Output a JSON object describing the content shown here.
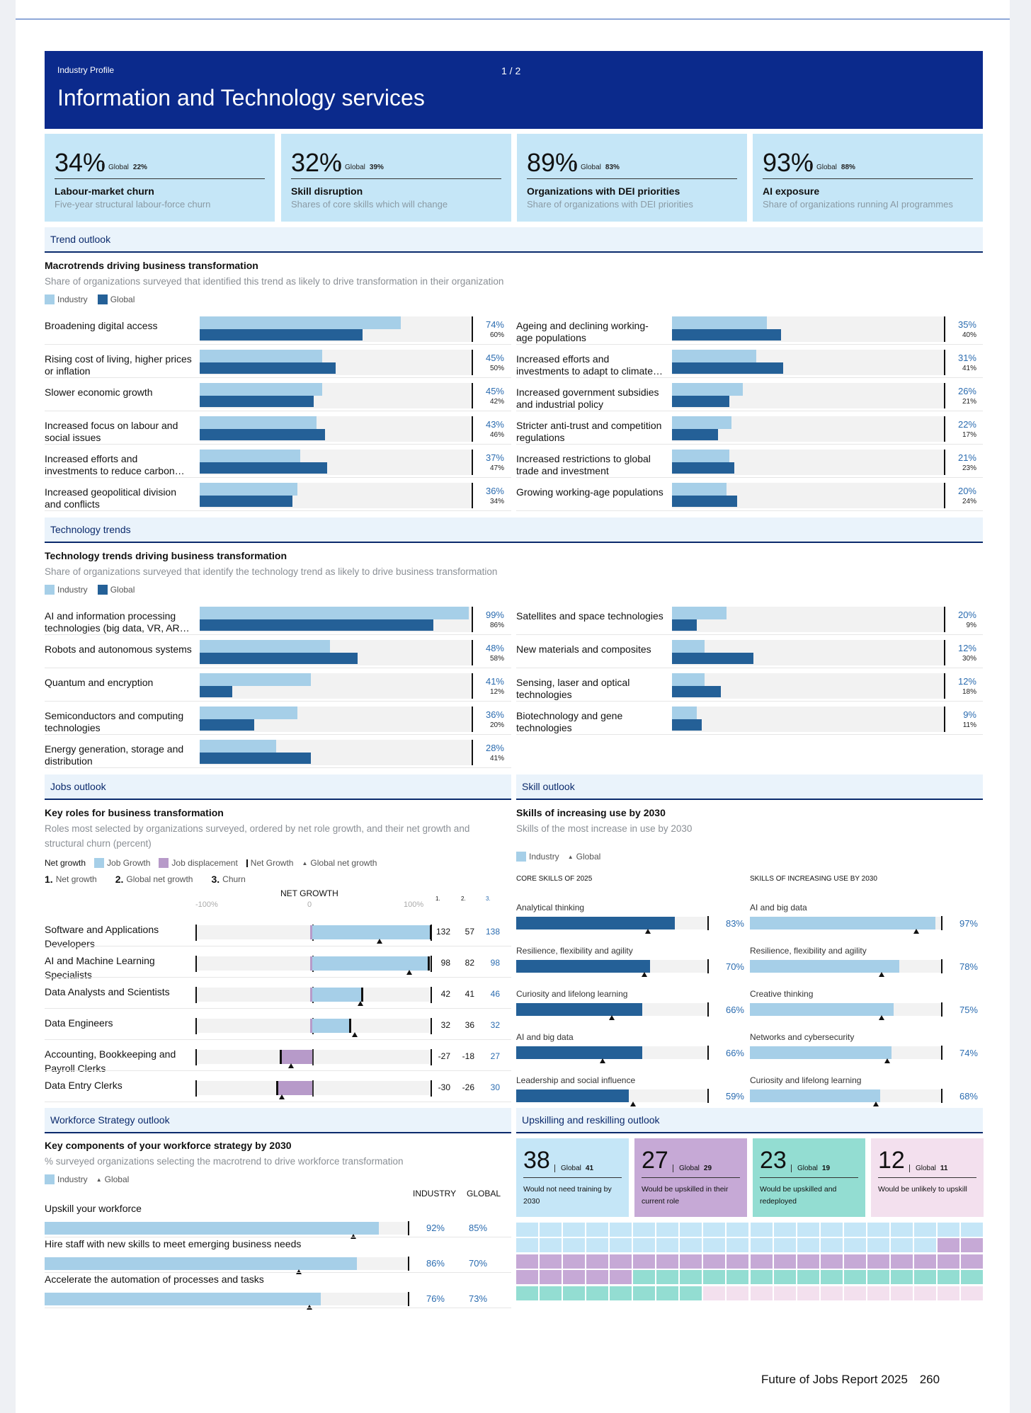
{
  "header": {
    "label": "Industry Profile",
    "page": "1  /  2",
    "title": "Information and Technology services"
  },
  "kpis": [
    {
      "value": "34%",
      "global_label": "Global",
      "global": "22%",
      "title": "Labour-market churn",
      "sub": "Five-year structural labour-force churn"
    },
    {
      "value": "32%",
      "global_label": "Global",
      "global": "39%",
      "title": "Skill disruption",
      "sub": "Shares of core skills which will change"
    },
    {
      "value": "89%",
      "global_label": "Global",
      "global": "83%",
      "title": "Organizations with DEI priorities",
      "sub": "Share of organizations with DEI priorities"
    },
    {
      "value": "93%",
      "global_label": "Global",
      "global": "88%",
      "title": "AI exposure",
      "sub": "Share of organizations running AI programmes"
    }
  ],
  "legend": {
    "industry": "Industry",
    "global": "Global"
  },
  "trend": {
    "section": "Trend outlook",
    "title": "Macrotrends driving business transformation",
    "sub": "Share of organizations surveyed that identified this trend as likely to drive transformation in their organization",
    "rows": [
      {
        "label": "Broadening digital access",
        "ind": 74,
        "glob": 60
      },
      {
        "label": "Rising cost of living, higher prices or inflation",
        "ind": 45,
        "glob": 50
      },
      {
        "label": "Slower economic growth",
        "ind": 45,
        "glob": 42
      },
      {
        "label": "Increased focus on labour and social issues",
        "ind": 43,
        "glob": 46
      },
      {
        "label": "Increased efforts and investments to reduce carbon…",
        "ind": 37,
        "glob": 47
      },
      {
        "label": "Increased geopolitical division and conflicts",
        "ind": 36,
        "glob": 34
      },
      {
        "label": "Ageing and declining working-age populations",
        "ind": 35,
        "glob": 40
      },
      {
        "label": "Increased efforts and investments to adapt to climate…",
        "ind": 31,
        "glob": 41
      },
      {
        "label": "Increased government subsidies and industrial policy",
        "ind": 26,
        "glob": 21
      },
      {
        "label": "Stricter anti-trust and competition regulations",
        "ind": 22,
        "glob": 17
      },
      {
        "label": "Increased restrictions to global trade and investment",
        "ind": 21,
        "glob": 23
      },
      {
        "label": "Growing working-age populations",
        "ind": 20,
        "glob": 24
      }
    ]
  },
  "tech": {
    "section": "Technology trends",
    "title": "Technology trends driving business transformation",
    "sub": "Share of organizations surveyed that identify the technology trend as likely to drive business transformation",
    "rows": [
      {
        "label": "AI and information processing technologies (big data, VR, AR…",
        "ind": 99,
        "glob": 86
      },
      {
        "label": "Robots and autonomous systems",
        "ind": 48,
        "glob": 58
      },
      {
        "label": "Quantum and encryption",
        "ind": 41,
        "glob": 12
      },
      {
        "label": "Semiconductors and computing technologies",
        "ind": 36,
        "glob": 20
      },
      {
        "label": "Energy generation, storage and distribution",
        "ind": 28,
        "glob": 41
      },
      {
        "label": "Satellites and space technologies",
        "ind": 20,
        "glob": 9
      },
      {
        "label": "New materials and composites",
        "ind": 12,
        "glob": 30
      },
      {
        "label": "Sensing, laser and optical technologies",
        "ind": 12,
        "glob": 18
      },
      {
        "label": "Biotechnology and gene technologies",
        "ind": 9,
        "glob": 11
      }
    ]
  },
  "jobs": {
    "section": "Jobs outlook",
    "title": "Key roles for business transformation",
    "sub": "Roles most selected by organizations surveyed, ordered by net role growth, and their net growth and structural churn (percent)",
    "legend": {
      "net": "Net growth",
      "growth": "Job Growth",
      "displacement": "Job displacement",
      "netg": "Net Growth",
      "global": "Global net growth"
    },
    "cols": {
      "c1": "Net growth",
      "c2": "Global net growth",
      "c3": "Churn",
      "n1": "1.",
      "n2": "2.",
      "n3": "3."
    },
    "axis": {
      "title": "NET GROWTH",
      "min": "-100%",
      "mid": "0",
      "max": "100%"
    },
    "rows": [
      {
        "label": "Software and Applications Developers",
        "net": 132,
        "glob": 57,
        "churn": 138
      },
      {
        "label": "AI and Machine Learning Specialists",
        "net": 98,
        "glob": 82,
        "churn": 98
      },
      {
        "label": "Data Analysts and Scientists",
        "net": 42,
        "glob": 41,
        "churn": 46
      },
      {
        "label": "Data Engineers",
        "net": 32,
        "glob": 36,
        "churn": 32
      },
      {
        "label": "Accounting, Bookkeeping and Payroll Clerks",
        "net": -27,
        "glob": -18,
        "churn": 27
      },
      {
        "label": "Data Entry Clerks",
        "net": -30,
        "glob": -26,
        "churn": 30
      }
    ]
  },
  "skills": {
    "section": "Skill outlook",
    "title": "Skills of increasing use by 2030",
    "sub": "Skills of the most increase in use by 2030",
    "col1": "CORE SKILLS OF 2025",
    "col2": "SKILLS OF INCREASING USE BY 2030",
    "core": [
      {
        "label": "Analytical thinking",
        "ind": 83,
        "glob": 69
      },
      {
        "label": "Resilience, flexibility and agility",
        "ind": 70,
        "glob": 67
      },
      {
        "label": "Curiosity and lifelong learning",
        "ind": 66,
        "glob": 50
      },
      {
        "label": "AI and big data",
        "ind": 66,
        "glob": 45
      },
      {
        "label": "Leadership and social influence",
        "ind": 59,
        "glob": 61
      }
    ],
    "increasing": [
      {
        "label": "AI and big data",
        "ind": 97,
        "glob": 87
      },
      {
        "label": "Resilience, flexibility and agility",
        "ind": 78,
        "glob": 69
      },
      {
        "label": "Creative thinking",
        "ind": 75,
        "glob": 69
      },
      {
        "label": "Networks and cybersecurity",
        "ind": 74,
        "glob": 72
      },
      {
        "label": "Curiosity and lifelong learning",
        "ind": 68,
        "glob": 66
      }
    ]
  },
  "workforce": {
    "section": "Workforce Strategy outlook",
    "title": "Key components of your workforce strategy by 2030",
    "sub": "% surveyed organizations selecting the macrotrend to drive workforce transformation",
    "h_ind": "INDUSTRY",
    "h_glob": "GLOBAL",
    "rows": [
      {
        "label": "Upskill your workforce",
        "ind": 92,
        "glob": 85
      },
      {
        "label": "Hire staff with new skills to meet emerging business needs",
        "ind": 86,
        "glob": 70
      },
      {
        "label": "Accelerate the automation of processes and tasks",
        "ind": 76,
        "glob": 73
      }
    ]
  },
  "upskill": {
    "section": "Upskilling and reskilling outlook",
    "stats": [
      {
        "value": "38",
        "global_label": "Global",
        "global": "41",
        "text": "Would not need training by 2030",
        "color": "#c5e6f7"
      },
      {
        "value": "27",
        "global_label": "Global",
        "global": "29",
        "text": "Would be upskilled in their current role",
        "color": "#c6a9d6"
      },
      {
        "value": "23",
        "global_label": "Global",
        "global": "19",
        "text": "Would be upskilled and redeployed",
        "color": "#93ddd2"
      },
      {
        "value": "12",
        "global_label": "Global",
        "global": "11",
        "text": "Would be unlikely to upskill",
        "color": "#f3e0ee"
      }
    ],
    "grid": {
      "cols": 20,
      "rows": 5,
      "counts": [
        38,
        27,
        23,
        12
      ],
      "colors": [
        "#c5e6f7",
        "#c6a9d6",
        "#93ddd2",
        "#f3e0ee"
      ]
    }
  },
  "footer": {
    "report": "Future of Jobs Report 2025",
    "page": "260"
  }
}
